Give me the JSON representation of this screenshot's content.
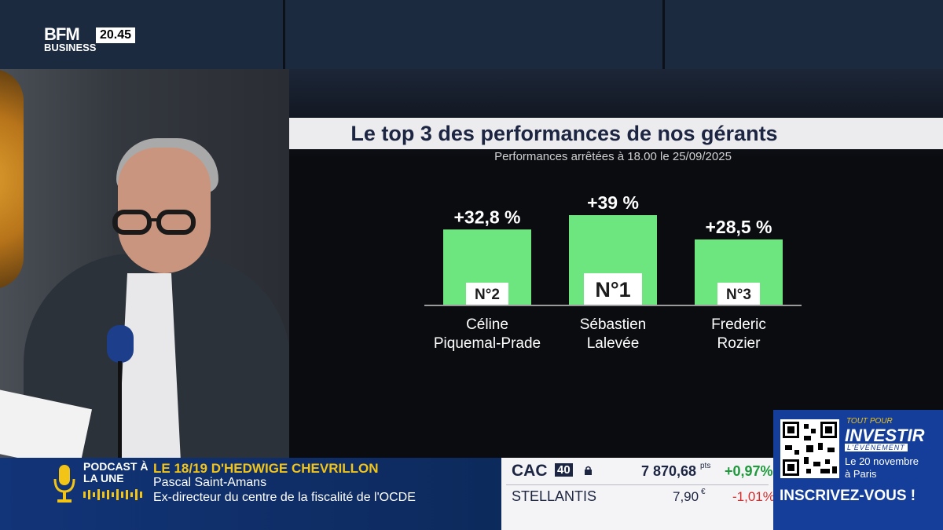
{
  "channel": {
    "logo_top": "BFM",
    "logo_bottom": "BUSINESS",
    "clock": "20.45"
  },
  "chart_data": {
    "type": "bar",
    "title": "Le top 3 des performances de nos gérants",
    "subtitle": "Performances arrêtées à 18.00 le 25/09/2025",
    "categories": [
      "Céline Piquemal-Prade",
      "Sébastien Lalevée",
      "Frederic Rozier"
    ],
    "name_lines": [
      [
        "Céline",
        "Piquemal-Prade"
      ],
      [
        "Sébastien",
        "Lalevée"
      ],
      [
        "Frederic",
        "Rozier"
      ]
    ],
    "values": [
      32.8,
      39,
      28.5
    ],
    "value_labels": [
      "+32,8 %",
      "+39 %",
      "+28,5 %"
    ],
    "rank_labels": [
      "N°2",
      "N°1",
      "N°3"
    ],
    "bar_color": "#6ee67f",
    "ylim": [
      0,
      39
    ]
  },
  "ticker": {
    "podcast_label": "PODCAST À LA UNE",
    "show_title": "LE 18/19 D'HEDWIGE CHEVRILLON",
    "guest_name": "Pascal Saint-Amans",
    "guest_role": "Ex-directeur du centre de la fiscalité de l'OCDE",
    "icon": "microphone-icon"
  },
  "market": {
    "index_name": "CAC",
    "index_suffix": "40",
    "index_value": "7 870,68",
    "index_unit": "pts",
    "index_change": "+0,97%",
    "stock_name": "STELLANTIS",
    "stock_value": "7,90",
    "stock_unit": "€",
    "stock_change": "-1,01%",
    "up_color": "#1e9a3c",
    "down_color": "#d62c2c"
  },
  "promo": {
    "tagline": "TOUT POUR",
    "brand": "INVESTIR",
    "event": "L'ÉVÉNEMENT",
    "date": "Le 20 novembre",
    "city": "à Paris",
    "cta": "INSCRIVEZ-VOUS !"
  }
}
